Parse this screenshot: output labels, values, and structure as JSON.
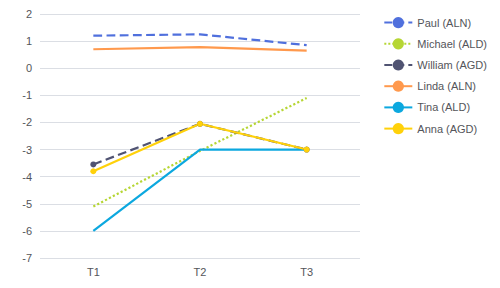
{
  "chart_data": {
    "type": "line",
    "categories": [
      "T1",
      "T2",
      "T3"
    ],
    "series": [
      {
        "name": "Paul (ALN)",
        "values": [
          1.2,
          1.25,
          0.85
        ],
        "line_style": "dashed"
      },
      {
        "name": "Michael (ALD)",
        "values": [
          -5.1,
          -3.05,
          -1.1
        ],
        "line_style": "dotted"
      },
      {
        "name": "William (AGD)",
        "values": [
          -3.55,
          -2.05,
          -3.0
        ],
        "line_style": "dashed",
        "marker": "circle"
      },
      {
        "name": "Linda (ALN)",
        "values": [
          0.7,
          0.78,
          0.65
        ],
        "line_style": "solid"
      },
      {
        "name": "Tina (ALD)",
        "values": [
          -6.0,
          -3.0,
          -3.0
        ],
        "line_style": "solid"
      },
      {
        "name": "Anna (AGD)",
        "values": [
          -3.8,
          -2.05,
          -3.0
        ],
        "line_style": "solid",
        "marker": "circle"
      }
    ],
    "ylim": [
      -7,
      2
    ],
    "yticks": [
      -7,
      -6,
      -5,
      -4,
      -3,
      -2,
      -1,
      0,
      1,
      2
    ],
    "grid": true,
    "legend": "right"
  }
}
